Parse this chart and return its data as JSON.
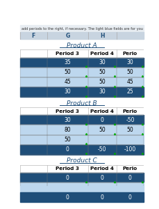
{
  "header_text": "add periods to the right, if necessary. The light blue fields are for you to ent",
  "col_headers": [
    "F",
    "G",
    "H",
    ""
  ],
  "background_color": "#ffffff",
  "col_header_bg": "#c8d4e0",
  "dark_row_bg": "#1f4e79",
  "light_row_bg": "#bdd7ee",
  "dark_row_fg": "#ffffff",
  "light_row_fg": "#000000",
  "product_label_fg": "#1f4e79",
  "products": [
    {
      "name": "Product A",
      "periods": [
        "Period 3",
        "Period 4",
        "Perio"
      ],
      "rows": [
        {
          "values": [
            "35",
            "30",
            "30"
          ],
          "dark": true
        },
        {
          "values": [
            "50",
            "50",
            "50"
          ],
          "dark": false
        },
        {
          "values": [
            "45",
            "50",
            "45"
          ],
          "dark": false
        },
        {
          "values": [
            "30",
            "30",
            "25"
          ],
          "dark": true
        }
      ]
    },
    {
      "name": "Product B",
      "periods": [
        "Period 3",
        "Period 4",
        "Perio"
      ],
      "rows": [
        {
          "values": [
            "30",
            "0",
            "-50"
          ],
          "dark": true
        },
        {
          "values": [
            "80",
            "50",
            "50"
          ],
          "dark": false
        },
        {
          "values": [
            "50",
            "",
            ""
          ],
          "dark": false
        },
        {
          "values": [
            "0",
            "-50",
            "-100"
          ],
          "dark": true
        }
      ]
    },
    {
      "name": "Product C",
      "periods": [
        "Period 3",
        "Period 4",
        "Perio"
      ],
      "rows": [
        {
          "values": [
            "0",
            "0",
            "0"
          ],
          "dark": true
        },
        {
          "values": [
            "",
            "",
            ""
          ],
          "dark": false
        },
        {
          "values": [
            "0",
            "0",
            "0"
          ],
          "dark": true
        }
      ]
    }
  ]
}
